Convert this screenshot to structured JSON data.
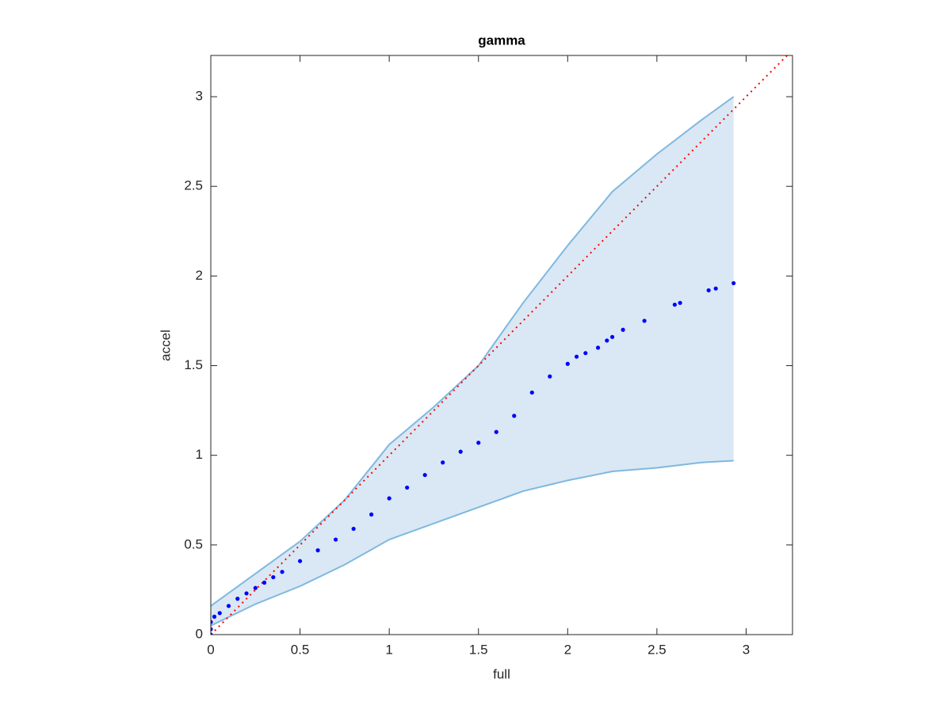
{
  "chart_data": {
    "type": "scatter",
    "title": "gamma",
    "xlabel": "full",
    "ylabel": "accel",
    "xlim": [
      0,
      3.26
    ],
    "ylim": [
      0,
      3.23
    ],
    "xticks": [
      0,
      0.5,
      1,
      1.5,
      2,
      2.5,
      3
    ],
    "yticks": [
      0,
      0.5,
      1,
      1.5,
      2,
      2.5,
      3
    ],
    "band": {
      "color": "#7fb8e0",
      "fill": "#d9e8f4",
      "x": [
        0,
        0.25,
        0.5,
        0.75,
        1,
        1.25,
        1.5,
        1.75,
        2,
        2.25,
        2.5,
        2.75,
        2.93
      ],
      "upper": [
        0.16,
        0.34,
        0.52,
        0.75,
        1.06,
        1.27,
        1.5,
        1.85,
        2.17,
        2.47,
        2.68,
        2.87,
        3.0
      ],
      "lower": [
        0.05,
        0.17,
        0.27,
        0.39,
        0.53,
        0.62,
        0.71,
        0.8,
        0.86,
        0.91,
        0.93,
        0.96,
        0.97
      ]
    },
    "reference": {
      "color": "#ff0000",
      "x": [
        0,
        3.26
      ],
      "y": [
        0,
        3.26
      ]
    },
    "points": {
      "color": "#0000ff",
      "x": [
        0,
        0,
        0,
        0.02,
        0.05,
        0.1,
        0.15,
        0.2,
        0.25,
        0.3,
        0.35,
        0.4,
        0.5,
        0.6,
        0.7,
        0.8,
        0.9,
        1.0,
        1.1,
        1.2,
        1.3,
        1.4,
        1.5,
        1.6,
        1.7,
        1.8,
        1.9,
        2.0,
        2.05,
        2.1,
        2.17,
        2.22,
        2.25,
        2.31,
        2.43,
        2.6,
        2.63,
        2.79,
        2.83,
        2.93
      ],
      "y": [
        0,
        0.03,
        0.07,
        0.1,
        0.12,
        0.16,
        0.2,
        0.23,
        0.26,
        0.29,
        0.32,
        0.35,
        0.41,
        0.47,
        0.53,
        0.59,
        0.67,
        0.76,
        0.82,
        0.89,
        0.96,
        1.02,
        1.07,
        1.13,
        1.22,
        1.35,
        1.44,
        1.51,
        1.55,
        1.57,
        1.6,
        1.64,
        1.66,
        1.7,
        1.75,
        1.84,
        1.85,
        1.92,
        1.93,
        1.96
      ]
    }
  }
}
